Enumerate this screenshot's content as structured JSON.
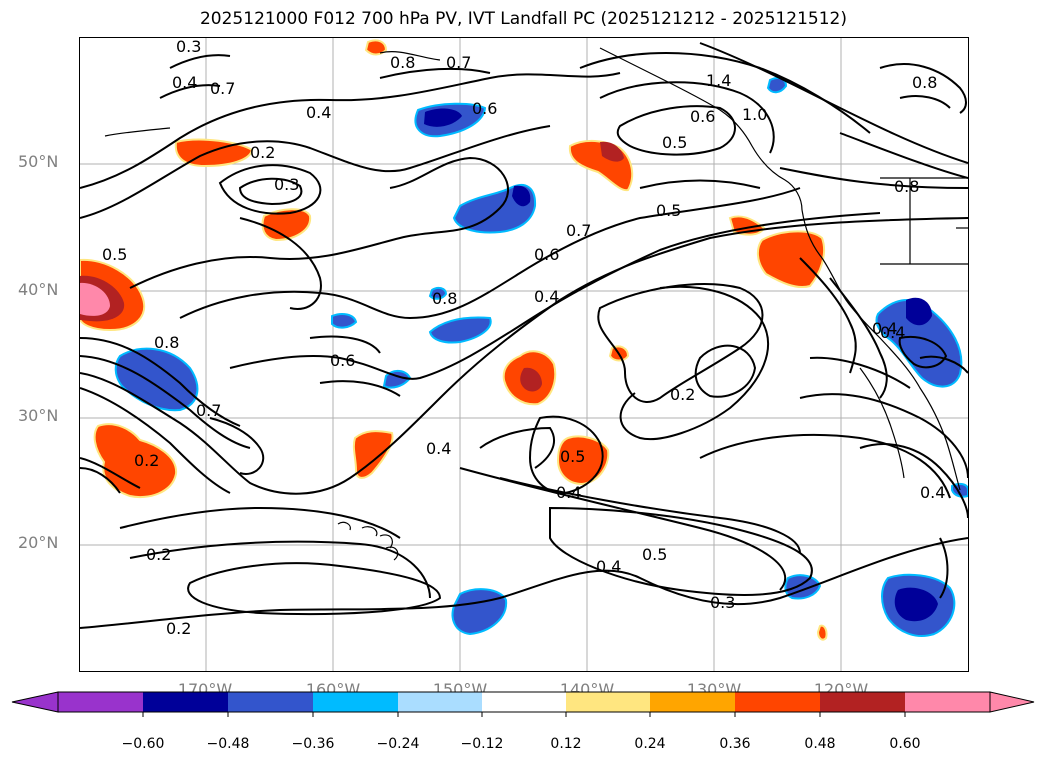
{
  "title": "2025121000 F012 700 hPa PV, IVT Landfall PC (2025121212 - 2025121512)",
  "lat_labels": [
    "50°N",
    "40°N",
    "30°N",
    "20°N"
  ],
  "lon_labels": [
    "170°W",
    "160°W",
    "150°W",
    "140°W",
    "130°W",
    "120°W"
  ],
  "colorbar": {
    "ticks": [
      "−0.60",
      "−0.48",
      "−0.36",
      "−0.24",
      "−0.12",
      "0.12",
      "0.24",
      "0.36",
      "0.48",
      "0.60"
    ],
    "colors": [
      "#9933cc",
      "#000099",
      "#3355cc",
      "#00bbff",
      "#aaddff",
      "#ffffff",
      "#ffe680",
      "#ffa500",
      "#ff4500",
      "#b22222",
      "#ff88aa"
    ]
  },
  "contour_labels": [
    "0.3",
    "0.4",
    "0.7",
    "0.8",
    "0.7",
    "0.4",
    "0.6",
    "1.4",
    "1.0",
    "0.6",
    "0.5",
    "0.8",
    "0.8",
    "0.2",
    "0.3",
    "0.5",
    "0.5",
    "0.7",
    "0.6",
    "0.4",
    "0.8",
    "0.8",
    "0.6",
    "0.7",
    "0.2",
    "0.4",
    "0.2",
    "0.5",
    "0.4",
    "0.4",
    "0.4",
    "0.2",
    "0.5",
    "0.4",
    "0.3",
    "0.2",
    "0.4"
  ],
  "colors": {
    "neg_deep": "#000099",
    "neg_mid": "#3355cc",
    "neg_light": "#00bbff",
    "pos_light": "#ffe680",
    "pos_mid": "#ff4500",
    "pos_deep": "#b22222",
    "pos_max": "#ff88aa",
    "grid": "#b0b0b0",
    "axis_label": "#808080"
  }
}
